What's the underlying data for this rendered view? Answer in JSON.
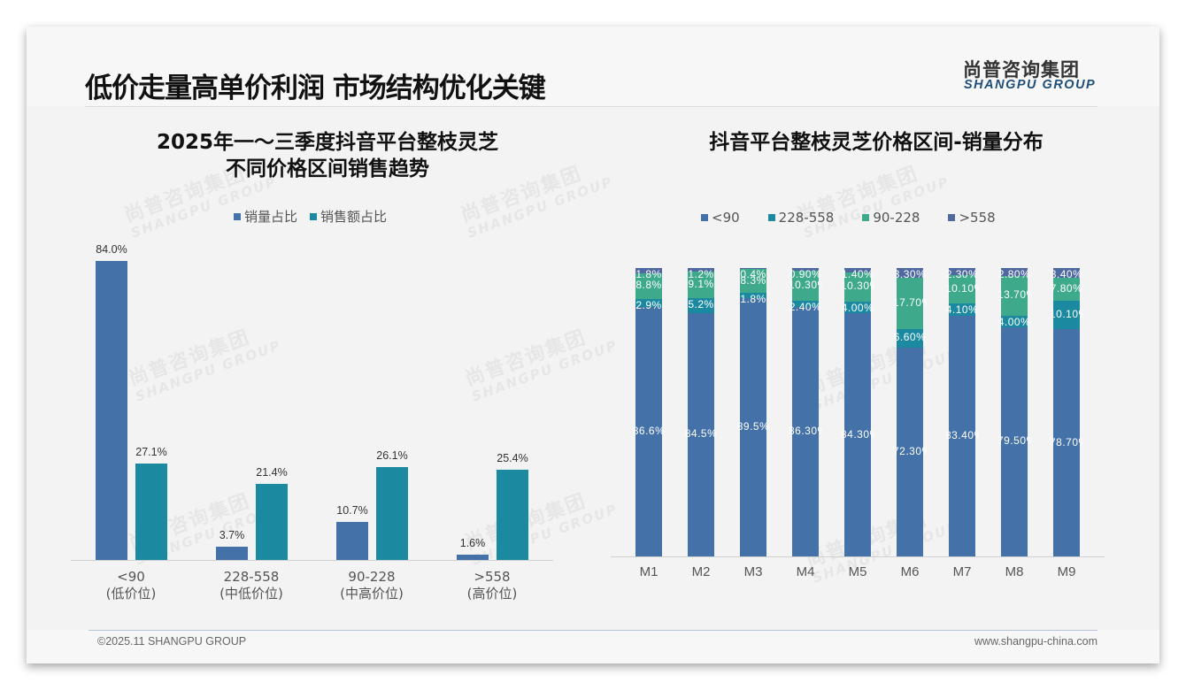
{
  "header": {
    "title": "低价走量高单价利润 市场结构优化关键",
    "logo_cn": "尚普咨询集团",
    "logo_en": "SHANGPU GROUP"
  },
  "watermark": {
    "cn": "尚普咨询集团",
    "en": "SHANGPU GROUP"
  },
  "left_panel": {
    "title_line1": "2025年一～三季度抖音平台整枝灵芝",
    "title_line2": "不同价格区间销售趋势",
    "legend": [
      {
        "label": "销量占比",
        "color": "#4472a8"
      },
      {
        "label": "销售额占比",
        "color": "#1b8aa0"
      }
    ]
  },
  "right_panel": {
    "title": "抖音平台整枝灵芝价格区间-销量分布",
    "legend": [
      {
        "label": "<90",
        "color": "#4472a8"
      },
      {
        "label": "228-558",
        "color": "#1b8aa0"
      },
      {
        "label": "90-228",
        "color": "#3fa98c"
      },
      {
        "label": ">558",
        "color": "#5068a0"
      }
    ]
  },
  "chart_data": [
    {
      "type": "bar",
      "title": "2025年一～三季度抖音平台整枝灵芝不同价格区间销售趋势",
      "categories": [
        "<90",
        "228-558",
        "90-228",
        ">558"
      ],
      "category_sublabels": [
        "(低价位)",
        "(中低价位)",
        "(中高价位)",
        "(高价位)"
      ],
      "series": [
        {
          "name": "销量占比",
          "values": [
            84.0,
            3.7,
            10.7,
            1.6
          ],
          "labels": [
            "84.0%",
            "3.7%",
            "10.7%",
            "1.6%"
          ]
        },
        {
          "name": "销售额占比",
          "values": [
            27.1,
            21.4,
            26.1,
            25.4
          ],
          "labels": [
            "27.1%",
            "21.4%",
            "26.1%",
            "25.4%"
          ]
        }
      ],
      "xlabel": "",
      "ylabel": "",
      "ylim": [
        0,
        84
      ],
      "legend_position": "top",
      "grid": false
    },
    {
      "type": "bar",
      "stacked": true,
      "title": "抖音平台整枝灵芝价格区间-销量分布",
      "categories": [
        "M1",
        "M2",
        "M3",
        "M4",
        "M5",
        "M6",
        "M7",
        "M8",
        "M9"
      ],
      "series": [
        {
          "name": "<90",
          "values": [
            86.6,
            84.5,
            89.5,
            86.3,
            84.3,
            72.3,
            83.4,
            79.5,
            78.7
          ],
          "labels": [
            "86.6%",
            "84.5%",
            "89.5%",
            "86.30%",
            "84.30%",
            "72.30%",
            "83.40%",
            "79.50%",
            "78.70%"
          ]
        },
        {
          "name": "228-558",
          "values": [
            2.9,
            5.2,
            1.8,
            2.4,
            4.0,
            6.6,
            4.1,
            4.0,
            10.1
          ],
          "labels": [
            "2.9%",
            "5.2%",
            "1.8%",
            "2.40%",
            "4.00%",
            "6.60%",
            "4.10%",
            "4.00%",
            "10.10%"
          ]
        },
        {
          "name": "90-228",
          "values": [
            8.8,
            9.1,
            8.3,
            10.3,
            10.3,
            17.7,
            10.1,
            13.7,
            7.8
          ],
          "labels": [
            "8.8%",
            "9.1%",
            "8.3%",
            "10.30%",
            "10.30%",
            "17.70%",
            "10.10%",
            "13.70%",
            "7.80%"
          ]
        },
        {
          "name": ">558",
          "values": [
            1.8,
            1.2,
            0.4,
            0.9,
            1.4,
            3.3,
            2.3,
            2.8,
            3.4
          ],
          "labels": [
            "1.8%",
            "1.2%",
            "0.4%",
            "0.90%",
            "1.40%",
            "3.30%",
            "2.30%",
            "2.80%",
            "3.40%"
          ]
        }
      ],
      "xlabel": "",
      "ylabel": "",
      "ylim": [
        0,
        100
      ],
      "legend_position": "top",
      "grid": false
    }
  ],
  "footer": {
    "copyright": "©2025.11 SHANGPU GROUP",
    "website": "www.shangpu-china.com"
  }
}
